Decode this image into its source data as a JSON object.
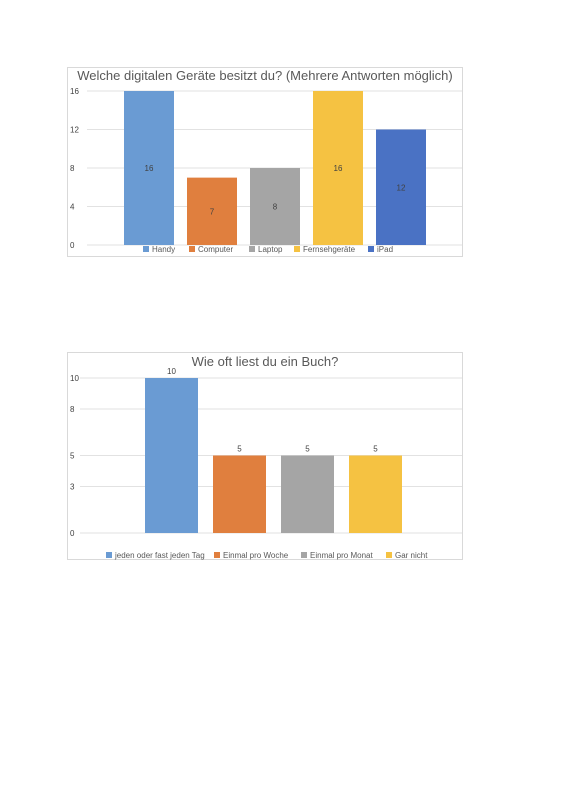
{
  "chart_data": [
    {
      "type": "bar",
      "title": "Welche digitalen Geräte besitzt du? (Mehrere Antworten möglich)",
      "categories": [
        "Handy",
        "Computer",
        "Laptop",
        "Fernsehgeräte",
        "iPad"
      ],
      "values": [
        16,
        7,
        8,
        16,
        12
      ],
      "colors": [
        "#6a9bd3",
        "#e07f3e",
        "#a5a5a5",
        "#f5c242",
        "#4a72c4"
      ],
      "yticks": [
        0,
        4,
        8,
        12,
        16
      ],
      "ylim": [
        0,
        16
      ],
      "grid": true,
      "legend": "bottom",
      "data_label_position": "middle"
    },
    {
      "type": "bar",
      "title": "Wie oft liest du ein Buch?",
      "categories": [
        "jeden oder fast jeden Tag",
        "Einmal pro Woche",
        "Einmal pro Monat",
        "Gar nicht"
      ],
      "values": [
        10,
        5,
        5,
        5
      ],
      "colors": [
        "#6a9bd3",
        "#e07f3e",
        "#a5a5a5",
        "#f5c242"
      ],
      "yticks": [
        0,
        3,
        5,
        8,
        10
      ],
      "ylim": [
        0,
        10
      ],
      "grid": true,
      "legend": "bottom",
      "data_label_position": "top"
    }
  ]
}
